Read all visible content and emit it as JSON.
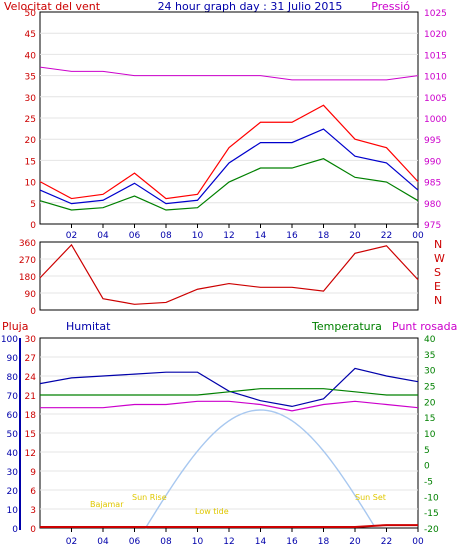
{
  "panel1": {
    "title_left": "Velocitat del vent",
    "title_center": "24 hour graph day : 31 Julio 2015",
    "title_right": "Pressió",
    "left_ticks": [
      "0",
      "5",
      "10",
      "15",
      "20",
      "25",
      "30",
      "35",
      "40",
      "45",
      "50"
    ],
    "right_ticks": [
      "975",
      "980",
      "985",
      "990",
      "995",
      "1000",
      "1005",
      "1010",
      "1015",
      "1020",
      "1025"
    ],
    "colors": {
      "gust": "#ff0000",
      "avg": "#0000cc",
      "speed": "#008000",
      "pressure": "#cc00cc"
    }
  },
  "panel2": {
    "left_ticks": [
      "0",
      "90",
      "180",
      "270",
      "360"
    ],
    "compass": [
      "N",
      "W",
      "S",
      "E",
      "N"
    ],
    "color": "#cc0000"
  },
  "panel3": {
    "label_rain": "Pluja",
    "label_humidity": "Humitat",
    "label_temp": "Temperatura",
    "label_dew": "Punt rosada",
    "rain_ticks": [
      "0",
      "3",
      "6",
      "9",
      "12",
      "15",
      "18",
      "21",
      "24",
      "27",
      "30"
    ],
    "humidity_ticks": [
      "0",
      "10",
      "20",
      "30",
      "40",
      "50",
      "60",
      "70",
      "80",
      "90",
      "100"
    ],
    "temp_ticks": [
      "-20",
      "-15",
      "-10",
      "-5",
      "0",
      "5",
      "10",
      "15",
      "20",
      "25",
      "30",
      "35",
      "40"
    ],
    "annotations": {
      "bajamar_1": "Bajamar",
      "sunrise": "Sun Rise",
      "bajamar_2": "Low tide",
      "sunset": "Sun Set"
    },
    "colors": {
      "humidity": "#0000aa",
      "temp": "#008000",
      "dew": "#cc00cc",
      "sun": "#a8c8f0",
      "rain": "#cc0000"
    }
  },
  "x_ticks": [
    "02",
    "04",
    "06",
    "08",
    "10",
    "12",
    "14",
    "16",
    "18",
    "20",
    "22",
    "00"
  ],
  "chart_data": [
    {
      "type": "line",
      "title": "24 hour graph day : 31 Julio 2015",
      "x": [
        "00:00",
        "02:00",
        "04:00",
        "06:00",
        "08:00",
        "10:00",
        "12:00",
        "14:00",
        "16:00",
        "18:00",
        "20:00",
        "22:00",
        "24:00"
      ],
      "series": [
        {
          "name": "Velocitat del vent",
          "values": [
            10,
            6,
            7,
            12,
            6,
            7,
            18,
            24,
            24,
            28,
            20,
            18,
            10
          ]
        },
        {
          "name": "Pressió",
          "values": [
            1012,
            1011,
            1011,
            1010,
            1010,
            1010,
            1010,
            1010,
            1009,
            1009,
            1009,
            1009,
            1010
          ]
        }
      ],
      "ylim": [
        0,
        50
      ],
      "y2lim": [
        975,
        1025
      ]
    },
    {
      "type": "line",
      "x": [
        "00:00",
        "02:00",
        "04:00",
        "06:00",
        "08:00",
        "10:00",
        "12:00",
        "14:00",
        "16:00",
        "18:00",
        "20:00",
        "22:00",
        "24:00"
      ],
      "series": [
        {
          "values": [
            170,
            345,
            60,
            30,
            40,
            110,
            140,
            120,
            120,
            100,
            300,
            340,
            160
          ]
        }
      ],
      "ylim": [
        0,
        360
      ]
    },
    {
      "type": "line",
      "x": [
        "00:00",
        "02:00",
        "04:00",
        "06:00",
        "08:00",
        "10:00",
        "12:00",
        "14:00",
        "16:00",
        "18:00",
        "20:00",
        "22:00",
        "24:00"
      ],
      "series": [
        {
          "name": "Humitat",
          "values": [
            76,
            79,
            80,
            81,
            82,
            82,
            72,
            67,
            64,
            68,
            84,
            80,
            77
          ]
        },
        {
          "name": "Temperatura",
          "values": [
            22,
            22,
            22,
            22,
            22,
            22,
            23,
            24,
            24,
            24,
            23,
            22,
            22
          ]
        },
        {
          "name": "Punt rosada",
          "values": [
            18,
            18,
            18,
            19,
            19,
            20,
            20,
            19,
            17,
            19,
            20,
            19,
            18
          ]
        },
        {
          "name": "Pluja",
          "values": [
            0,
            0,
            0,
            0,
            0,
            0,
            0,
            0,
            0,
            0,
            0,
            0.3,
            0.3
          ]
        }
      ],
      "ylim": [
        0,
        100
      ]
    }
  ]
}
